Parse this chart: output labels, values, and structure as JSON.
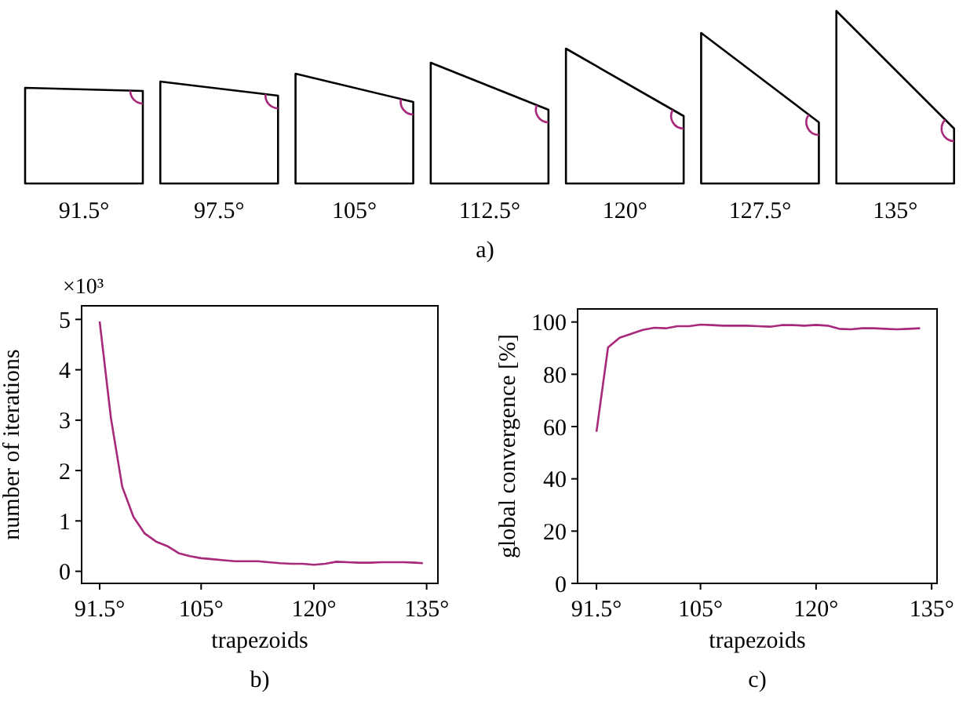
{
  "chart_data": [
    {
      "type": "other",
      "categories": [
        "91.5°",
        "97.5°",
        "105°",
        "112.5°",
        "120°",
        "127.5°",
        "135°"
      ],
      "annotations": [
        "a)"
      ]
    },
    {
      "type": "line",
      "xlabel": "trapezoids",
      "ylabel": "number of iterations",
      "annotations": [
        "×10³",
        "b)"
      ],
      "xlim": [
        89.1,
        136.5
      ],
      "ylim": [
        -0.24,
        5.27
      ],
      "xticks": [
        {
          "value": 91.5,
          "label": "91.5°"
        },
        {
          "value": 105,
          "label": "105°"
        },
        {
          "value": 120,
          "label": "120°"
        },
        {
          "value": 135,
          "label": "135°"
        }
      ],
      "yticks": [
        0,
        1,
        2,
        3,
        4,
        5
      ],
      "series": [
        {
          "color": "#a8287c",
          "x": [
            91.5,
            93,
            94.5,
            96,
            97.5,
            99,
            100.5,
            102,
            103.5,
            105,
            106.5,
            108,
            109.5,
            111,
            112.5,
            114,
            115.5,
            117,
            118.5,
            120,
            121.5,
            123,
            124.5,
            126,
            127.5,
            129,
            130.5,
            132,
            133.5,
            134.5
          ],
          "values": [
            4.96,
            3.04,
            1.68,
            1.08,
            0.75,
            0.59,
            0.5,
            0.36,
            0.3,
            0.26,
            0.24,
            0.22,
            0.2,
            0.2,
            0.2,
            0.18,
            0.16,
            0.15,
            0.15,
            0.13,
            0.15,
            0.19,
            0.18,
            0.17,
            0.17,
            0.18,
            0.18,
            0.18,
            0.17,
            0.16
          ]
        }
      ]
    },
    {
      "type": "line",
      "xlabel": "trapezoids",
      "ylabel": "global convergence [%]",
      "annotations": [
        "c)"
      ],
      "xlim": [
        89.05,
        135.7
      ],
      "ylim": [
        0,
        105
      ],
      "xticks": [
        {
          "value": 91.5,
          "label": "91.5°"
        },
        {
          "value": 105,
          "label": "105°"
        },
        {
          "value": 120,
          "label": "120°"
        },
        {
          "value": 135,
          "label": "135°"
        }
      ],
      "yticks": [
        0,
        20,
        40,
        60,
        80,
        100
      ],
      "series": [
        {
          "color": "#a8287c",
          "x": [
            91.5,
            93,
            94.5,
            96,
            97.5,
            99,
            100.5,
            102,
            103.5,
            105,
            106.5,
            108,
            109.5,
            111,
            112.5,
            114,
            115.5,
            117,
            118.5,
            120,
            121.5,
            123,
            124.5,
            126,
            127.5,
            129,
            130.5,
            132,
            133.5
          ],
          "values": [
            58,
            90.3,
            94,
            95.5,
            97,
            97.8,
            97.6,
            98.4,
            98.4,
            99,
            98.8,
            98.6,
            98.6,
            98.6,
            98.4,
            98.2,
            98.8,
            98.8,
            98.6,
            98.9,
            98.6,
            97.4,
            97.2,
            97.6,
            97.6,
            97.4,
            97.2,
            97.4,
            97.6
          ]
        }
      ]
    }
  ]
}
